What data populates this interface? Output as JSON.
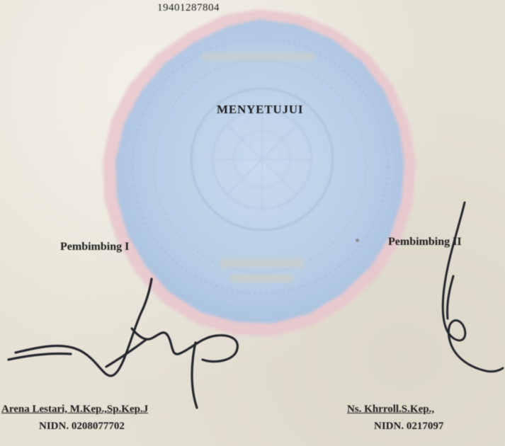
{
  "document": {
    "top_number": "19401287804",
    "approval_heading": "MENYETUJUI",
    "left_signer": {
      "role": "Pembimbing I",
      "name": "Arena Lestari, M.Kep.,Sp.Kep.J",
      "nidn": "NIDN. 0208077702"
    },
    "right_signer": {
      "role": "Pembimbing II",
      "name": "Ns. Khrroll.S.Kep.,",
      "nidn": "NIDN. 0217097"
    }
  },
  "seal": {
    "description_icon": "institution-seal-icon",
    "colors": {
      "fill": "#b9cfe6",
      "inner": "#c7d9ea",
      "rim": "#e3b9c3",
      "detail": "#9fb6d3"
    }
  },
  "signature": {
    "ink_color": "#24262e"
  }
}
